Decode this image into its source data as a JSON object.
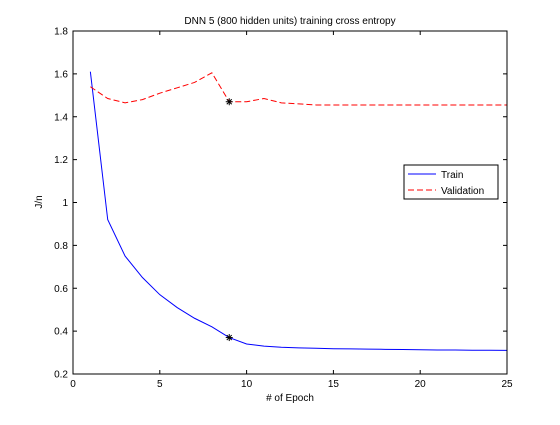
{
  "chart_data": {
    "type": "line",
    "title": "DNN 5 (800 hidden units) training cross entropy",
    "xlabel": "# of Epoch",
    "ylabel": "J/n",
    "xlim": [
      0,
      25
    ],
    "ylim": [
      0.2,
      1.8
    ],
    "xticks": [
      0,
      5,
      10,
      15,
      20,
      25
    ],
    "yticks": [
      0.2,
      0.4,
      0.6,
      0.8,
      1,
      1.2,
      1.4,
      1.6,
      1.8
    ],
    "xtick_labels": [
      "0",
      "5",
      "10",
      "15",
      "20",
      "25"
    ],
    "ytick_labels": [
      "0.2",
      "0.4",
      "0.6",
      "0.8",
      "1",
      "1.2",
      "1.4",
      "1.6",
      "1.8"
    ],
    "grid": false,
    "legend_position": "right",
    "series": [
      {
        "name": "Train",
        "color": "#0000ff",
        "linestyle": "solid",
        "x": [
          1,
          2,
          3,
          4,
          5,
          6,
          7,
          8,
          9,
          10,
          11,
          12,
          13,
          14,
          15,
          16,
          17,
          18,
          19,
          20,
          21,
          22,
          23,
          24,
          25
        ],
        "values": [
          1.61,
          0.92,
          0.75,
          0.65,
          0.57,
          0.51,
          0.46,
          0.42,
          0.37,
          0.34,
          0.33,
          0.325,
          0.322,
          0.32,
          0.318,
          0.317,
          0.316,
          0.315,
          0.314,
          0.313,
          0.312,
          0.312,
          0.311,
          0.311,
          0.31
        ]
      },
      {
        "name": "Validation",
        "color": "#ff0000",
        "linestyle": "dashed",
        "x": [
          1,
          2,
          3,
          4,
          5,
          6,
          7,
          8,
          9,
          10,
          11,
          12,
          13,
          14,
          15,
          16,
          17,
          18,
          19,
          20,
          21,
          22,
          23,
          24,
          25
        ],
        "values": [
          1.54,
          1.485,
          1.465,
          1.48,
          1.51,
          1.535,
          1.56,
          1.605,
          1.47,
          1.47,
          1.485,
          1.465,
          1.46,
          1.455,
          1.455,
          1.455,
          1.455,
          1.455,
          1.455,
          1.455,
          1.455,
          1.455,
          1.455,
          1.455,
          1.455
        ]
      }
    ],
    "markers": [
      {
        "series": "Train",
        "x": 9,
        "y": 0.37,
        "symbol": "*"
      },
      {
        "series": "Validation",
        "x": 9,
        "y": 1.47,
        "symbol": "*"
      }
    ]
  }
}
